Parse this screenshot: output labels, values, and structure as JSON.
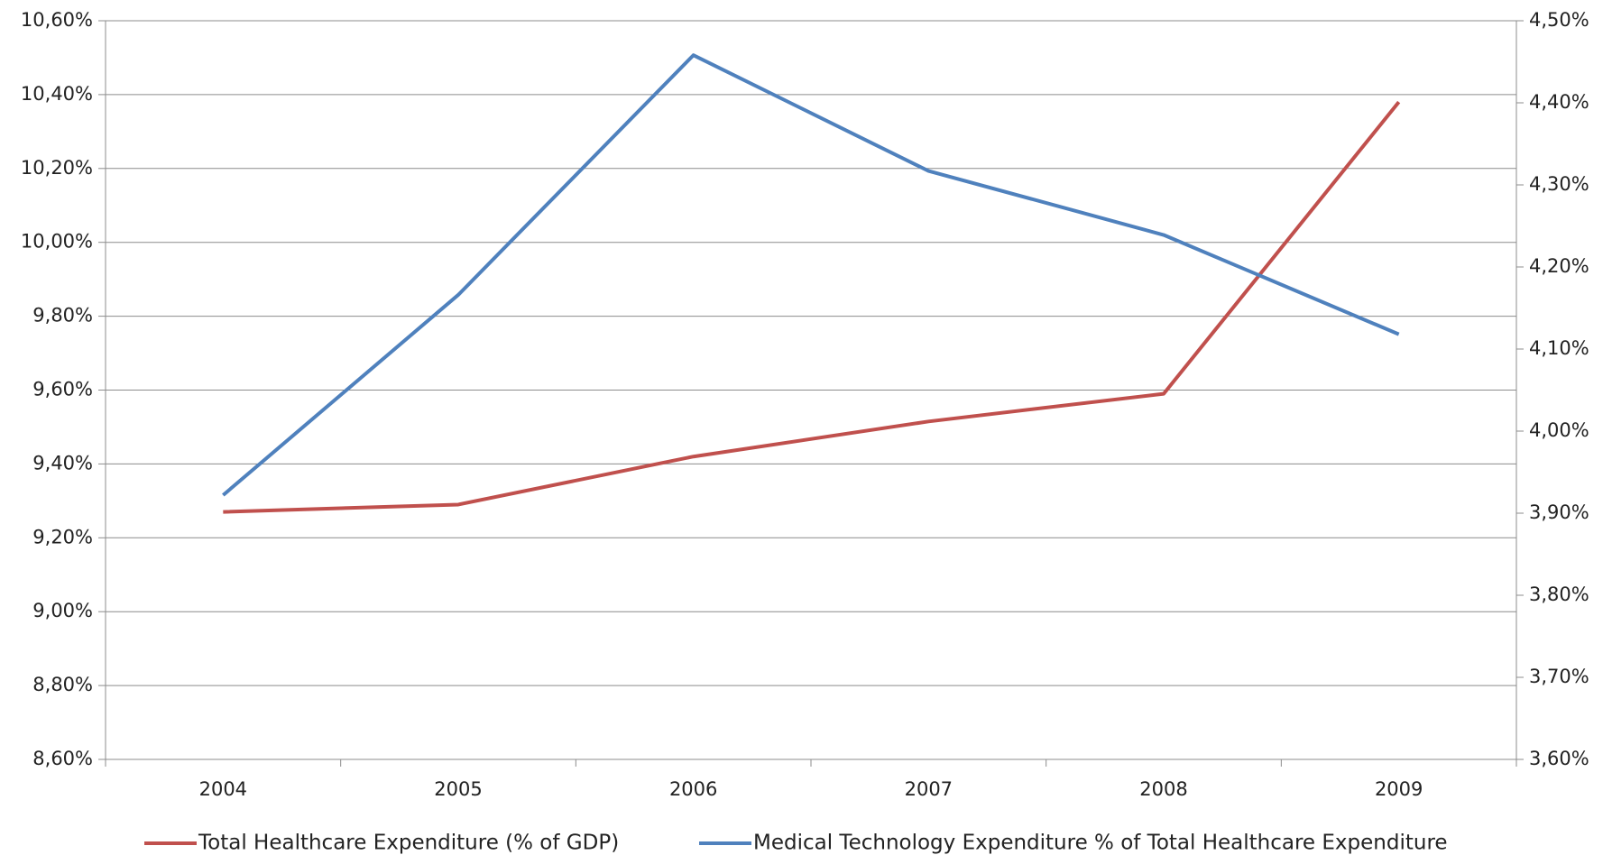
{
  "chart_data": {
    "type": "line",
    "categories": [
      "2004",
      "2005",
      "2006",
      "2007",
      "2008",
      "2009"
    ],
    "series": [
      {
        "name": "Total Healthcare Expenditure (% of GDP)",
        "color": "#c0504d",
        "values": [
          9.27,
          9.29,
          9.42,
          9.515,
          9.59,
          10.38
        ]
      },
      {
        "name": "Medical Technology Expenditure % of Total Healthcare Expenditure",
        "color": "#4f81bd",
        "axis": "y2",
        "values": [
          3.922,
          4.166,
          4.458,
          4.317,
          4.239,
          4.118
        ]
      }
    ],
    "ylim": [
      8.6,
      10.6
    ],
    "yticks": [
      {
        "value": 8.6,
        "label": "8,60%"
      },
      {
        "value": 8.8,
        "label": "8,80%"
      },
      {
        "value": 9.0,
        "label": "9,00%"
      },
      {
        "value": 9.2,
        "label": "9,20%"
      },
      {
        "value": 9.4,
        "label": "9,40%"
      },
      {
        "value": 9.6,
        "label": "9,60%"
      },
      {
        "value": 9.8,
        "label": "9,80%"
      },
      {
        "value": 10.0,
        "label": "10,00%"
      },
      {
        "value": 10.2,
        "label": "10,20%"
      },
      {
        "value": 10.4,
        "label": "10,40%"
      },
      {
        "value": 10.6,
        "label": "10,60%"
      }
    ],
    "y2lim": [
      3.6,
      4.5
    ],
    "y2ticks": [
      {
        "value": 3.6,
        "label": "3,60%"
      },
      {
        "value": 3.7,
        "label": "3,70%"
      },
      {
        "value": 3.8,
        "label": "3,80%"
      },
      {
        "value": 3.9,
        "label": "3,90%"
      },
      {
        "value": 4.0,
        "label": "4,00%"
      },
      {
        "value": 4.1,
        "label": "4,10%"
      },
      {
        "value": 4.2,
        "label": "4,20%"
      },
      {
        "value": 4.3,
        "label": "4,30%"
      },
      {
        "value": 4.4,
        "label": "4,40%"
      },
      {
        "value": 4.5,
        "label": "4,50%"
      }
    ],
    "grid": true,
    "legend": "bottom"
  }
}
